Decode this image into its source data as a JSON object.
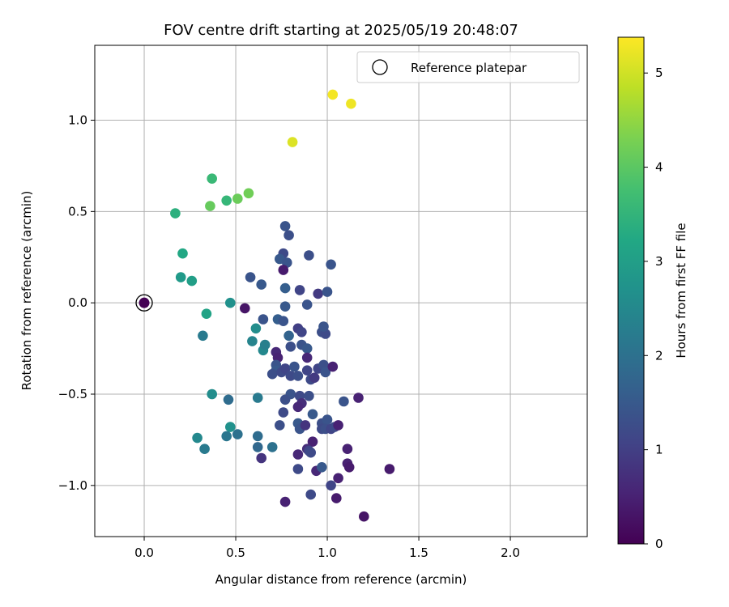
{
  "chart_data": {
    "type": "scatter",
    "title": "FOV centre drift starting at 2025/05/19 20:48:07",
    "xlabel": "Angular distance from reference (arcmin)",
    "ylabel": "Rotation from reference (arcmin)",
    "xlim": [
      -0.27,
      2.42
    ],
    "ylim": [
      -1.28,
      1.41
    ],
    "xticks": [
      0.0,
      0.5,
      1.0,
      1.5,
      2.0
    ],
    "xtick_labels": [
      "0.0",
      "0.5",
      "1.0",
      "1.5",
      "2.0"
    ],
    "yticks": [
      -1.0,
      -0.5,
      0.0,
      0.5,
      1.0
    ],
    "ytick_labels": [
      "−1.0",
      "−0.5",
      "0.0",
      "0.5",
      "1.0"
    ],
    "grid": true,
    "legend": {
      "placement": "top-right",
      "entries": [
        "Reference platepar"
      ]
    },
    "reference_point": {
      "x": 0.0,
      "y": 0.0,
      "c": 0.0
    },
    "colorbar": {
      "label": "Hours from first FF file",
      "colormap": "viridis",
      "range": [
        0,
        5.38
      ],
      "ticks": [
        0,
        1,
        2,
        3,
        4,
        5
      ],
      "tick_labels": [
        "0",
        "1",
        "2",
        "3",
        "4",
        "5"
      ]
    },
    "points": [
      {
        "x": 1.03,
        "y": 1.14,
        "c": 5.3
      },
      {
        "x": 1.13,
        "y": 1.09,
        "c": 5.25
      },
      {
        "x": 0.81,
        "y": 0.88,
        "c": 5.1
      },
      {
        "x": 0.57,
        "y": 0.6,
        "c": 4.2
      },
      {
        "x": 0.51,
        "y": 0.57,
        "c": 4.15
      },
      {
        "x": 0.36,
        "y": 0.53,
        "c": 4.1
      },
      {
        "x": 0.37,
        "y": 0.68,
        "c": 3.6
      },
      {
        "x": 0.45,
        "y": 0.56,
        "c": 3.55
      },
      {
        "x": 0.17,
        "y": 0.49,
        "c": 3.4
      },
      {
        "x": 0.21,
        "y": 0.27,
        "c": 3.2
      },
      {
        "x": 0.2,
        "y": 0.14,
        "c": 2.9
      },
      {
        "x": 0.26,
        "y": 0.12,
        "c": 3.0
      },
      {
        "x": 0.34,
        "y": -0.06,
        "c": 3.1
      },
      {
        "x": 0.47,
        "y": 0.0,
        "c": 2.7
      },
      {
        "x": 0.32,
        "y": -0.18,
        "c": 2.2
      },
      {
        "x": 0.61,
        "y": -0.14,
        "c": 2.6
      },
      {
        "x": 0.59,
        "y": -0.21,
        "c": 2.4
      },
      {
        "x": 0.65,
        "y": -0.26,
        "c": 2.5
      },
      {
        "x": 0.66,
        "y": -0.23,
        "c": 2.3
      },
      {
        "x": 0.37,
        "y": -0.5,
        "c": 2.6
      },
      {
        "x": 0.46,
        "y": -0.53,
        "c": 1.9
      },
      {
        "x": 0.62,
        "y": -0.52,
        "c": 2.2
      },
      {
        "x": 0.47,
        "y": -0.68,
        "c": 2.7
      },
      {
        "x": 0.45,
        "y": -0.73,
        "c": 2.1
      },
      {
        "x": 0.51,
        "y": -0.72,
        "c": 2.0
      },
      {
        "x": 0.29,
        "y": -0.74,
        "c": 2.5
      },
      {
        "x": 0.33,
        "y": -0.8,
        "c": 2.2
      },
      {
        "x": 0.62,
        "y": -0.73,
        "c": 1.9
      },
      {
        "x": 0.62,
        "y": -0.79,
        "c": 1.8
      },
      {
        "x": 0.7,
        "y": -0.79,
        "c": 2.0
      },
      {
        "x": 0.64,
        "y": -0.85,
        "c": 0.8
      },
      {
        "x": 0.58,
        "y": 0.14,
        "c": 1.4
      },
      {
        "x": 0.64,
        "y": 0.1,
        "c": 1.5
      },
      {
        "x": 0.55,
        "y": -0.03,
        "c": 0.3
      },
      {
        "x": 0.65,
        "y": -0.09,
        "c": 1.4
      },
      {
        "x": 0.77,
        "y": 0.42,
        "c": 1.4
      },
      {
        "x": 0.79,
        "y": 0.37,
        "c": 1.3
      },
      {
        "x": 0.76,
        "y": 0.27,
        "c": 1.2
      },
      {
        "x": 0.74,
        "y": 0.24,
        "c": 1.5
      },
      {
        "x": 0.78,
        "y": 0.22,
        "c": 1.4
      },
      {
        "x": 0.76,
        "y": 0.18,
        "c": 0.4
      },
      {
        "x": 0.77,
        "y": 0.08,
        "c": 1.6
      },
      {
        "x": 0.77,
        "y": -0.02,
        "c": 1.5
      },
      {
        "x": 0.73,
        "y": -0.09,
        "c": 1.6
      },
      {
        "x": 0.76,
        "y": -0.1,
        "c": 1.4
      },
      {
        "x": 0.79,
        "y": -0.18,
        "c": 1.7
      },
      {
        "x": 0.8,
        "y": -0.24,
        "c": 1.3
      },
      {
        "x": 0.72,
        "y": -0.27,
        "c": 0.6
      },
      {
        "x": 0.73,
        "y": -0.3,
        "c": 0.5
      },
      {
        "x": 0.72,
        "y": -0.34,
        "c": 1.4
      },
      {
        "x": 0.72,
        "y": -0.37,
        "c": 1.5
      },
      {
        "x": 0.7,
        "y": -0.39,
        "c": 1.3
      },
      {
        "x": 0.75,
        "y": -0.38,
        "c": 1.2
      },
      {
        "x": 0.77,
        "y": -0.36,
        "c": 1.1
      },
      {
        "x": 0.8,
        "y": -0.4,
        "c": 1.2
      },
      {
        "x": 0.84,
        "y": -0.4,
        "c": 1.3
      },
      {
        "x": 0.82,
        "y": -0.35,
        "c": 1.4
      },
      {
        "x": 0.84,
        "y": -0.14,
        "c": 1.0
      },
      {
        "x": 0.86,
        "y": -0.16,
        "c": 1.1
      },
      {
        "x": 0.86,
        "y": -0.23,
        "c": 1.4
      },
      {
        "x": 0.89,
        "y": -0.25,
        "c": 1.5
      },
      {
        "x": 0.89,
        "y": -0.3,
        "c": 0.6
      },
      {
        "x": 0.89,
        "y": -0.37,
        "c": 1.1
      },
      {
        "x": 0.91,
        "y": -0.42,
        "c": 1.2
      },
      {
        "x": 0.93,
        "y": -0.41,
        "c": 0.9
      },
      {
        "x": 0.95,
        "y": -0.36,
        "c": 1.1
      },
      {
        "x": 0.98,
        "y": -0.34,
        "c": 1.3
      },
      {
        "x": 0.99,
        "y": -0.38,
        "c": 1.4
      },
      {
        "x": 1.03,
        "y": -0.35,
        "c": 0.5
      },
      {
        "x": 0.97,
        "y": -0.16,
        "c": 1.3
      },
      {
        "x": 0.99,
        "y": -0.17,
        "c": 1.2
      },
      {
        "x": 0.98,
        "y": -0.13,
        "c": 1.4
      },
      {
        "x": 0.85,
        "y": 0.07,
        "c": 1.1
      },
      {
        "x": 0.89,
        "y": -0.01,
        "c": 1.4
      },
      {
        "x": 0.95,
        "y": 0.05,
        "c": 0.9
      },
      {
        "x": 1.0,
        "y": 0.06,
        "c": 1.4
      },
      {
        "x": 0.9,
        "y": 0.26,
        "c": 1.3
      },
      {
        "x": 1.02,
        "y": 0.21,
        "c": 1.4
      },
      {
        "x": 0.8,
        "y": -0.5,
        "c": 1.4
      },
      {
        "x": 0.77,
        "y": -0.53,
        "c": 1.3
      },
      {
        "x": 0.76,
        "y": -0.6,
        "c": 1.2
      },
      {
        "x": 0.74,
        "y": -0.67,
        "c": 1.3
      },
      {
        "x": 0.85,
        "y": -0.51,
        "c": 1.2
      },
      {
        "x": 0.86,
        "y": -0.55,
        "c": 0.7
      },
      {
        "x": 0.84,
        "y": -0.57,
        "c": 0.6
      },
      {
        "x": 0.9,
        "y": -0.51,
        "c": 1.3
      },
      {
        "x": 0.84,
        "y": -0.66,
        "c": 1.5
      },
      {
        "x": 0.85,
        "y": -0.69,
        "c": 1.4
      },
      {
        "x": 0.88,
        "y": -0.67,
        "c": 0.8
      },
      {
        "x": 0.92,
        "y": -0.61,
        "c": 1.5
      },
      {
        "x": 0.97,
        "y": -0.66,
        "c": 1.3
      },
      {
        "x": 0.97,
        "y": -0.69,
        "c": 1.2
      },
      {
        "x": 1.0,
        "y": -0.64,
        "c": 1.4
      },
      {
        "x": 0.99,
        "y": -0.69,
        "c": 1.3
      },
      {
        "x": 1.02,
        "y": -0.69,
        "c": 1.1
      },
      {
        "x": 1.04,
        "y": -0.68,
        "c": 1.2
      },
      {
        "x": 1.06,
        "y": -0.67,
        "c": 0.5
      },
      {
        "x": 1.09,
        "y": -0.54,
        "c": 1.4
      },
      {
        "x": 1.17,
        "y": -0.52,
        "c": 0.5
      },
      {
        "x": 0.92,
        "y": -0.76,
        "c": 0.5
      },
      {
        "x": 0.89,
        "y": -0.8,
        "c": 0.7
      },
      {
        "x": 0.9,
        "y": -0.81,
        "c": 1.1
      },
      {
        "x": 0.91,
        "y": -0.82,
        "c": 1.2
      },
      {
        "x": 0.84,
        "y": -0.83,
        "c": 0.6
      },
      {
        "x": 0.84,
        "y": -0.91,
        "c": 1.2
      },
      {
        "x": 0.94,
        "y": -0.92,
        "c": 0.6
      },
      {
        "x": 0.97,
        "y": -0.9,
        "c": 1.5
      },
      {
        "x": 1.11,
        "y": -0.8,
        "c": 0.5
      },
      {
        "x": 1.11,
        "y": -0.88,
        "c": 0.5
      },
      {
        "x": 1.12,
        "y": -0.9,
        "c": 0.4
      },
      {
        "x": 1.06,
        "y": -0.96,
        "c": 0.5
      },
      {
        "x": 1.02,
        "y": -1.0,
        "c": 1.1
      },
      {
        "x": 1.34,
        "y": -0.91,
        "c": 0.4
      },
      {
        "x": 0.91,
        "y": -1.05,
        "c": 1.2
      },
      {
        "x": 1.05,
        "y": -1.07,
        "c": 0.4
      },
      {
        "x": 0.77,
        "y": -1.09,
        "c": 0.5
      },
      {
        "x": 1.2,
        "y": -1.17,
        "c": 0.3
      }
    ]
  }
}
